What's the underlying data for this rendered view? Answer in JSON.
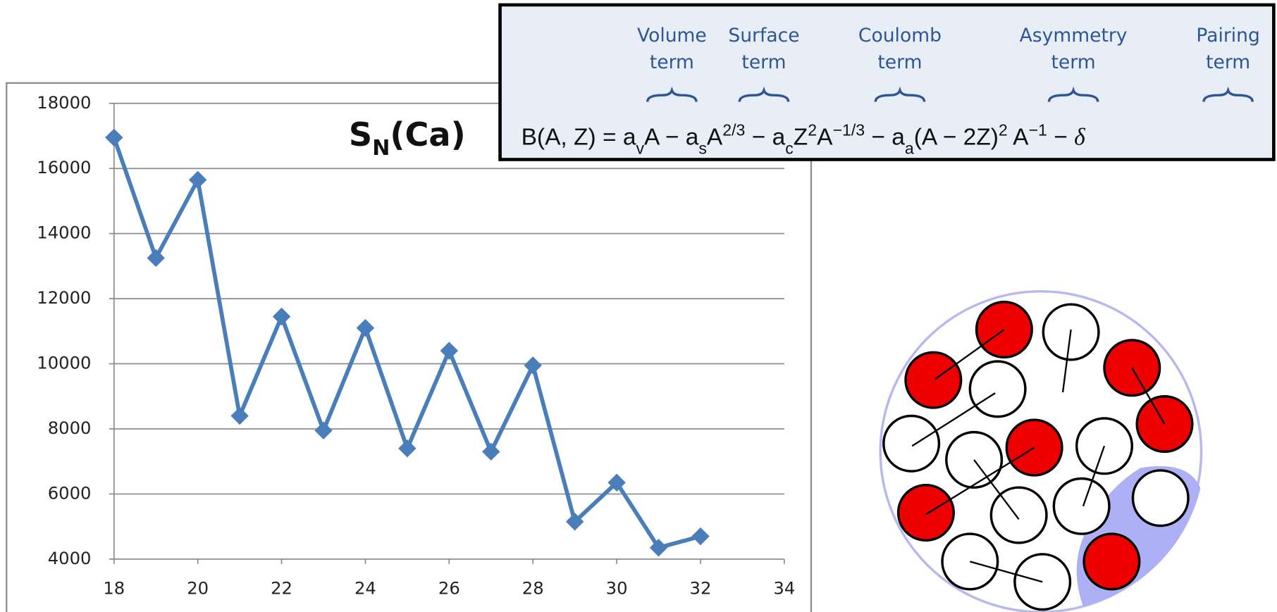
{
  "chart_data": {
    "type": "line",
    "title": [
      "S",
      "N",
      "(Ca)"
    ],
    "x": [
      18,
      19,
      20,
      21,
      22,
      23,
      24,
      25,
      26,
      27,
      28,
      29,
      30,
      31,
      32
    ],
    "series": [
      {
        "color": "#4a7ebb",
        "values": [
          16950,
          13250,
          15650,
          8400,
          11450,
          7950,
          11100,
          7400,
          10400,
          7300,
          9950,
          5150,
          6350,
          4350,
          4700
        ]
      }
    ],
    "xlim": [
      18,
      34
    ],
    "xticks": [
      18,
      20,
      22,
      24,
      26,
      28,
      30,
      32,
      34
    ],
    "ylim": [
      4000,
      18000
    ],
    "yticks": [
      4000,
      6000,
      8000,
      10000,
      12000,
      14000,
      16000,
      18000
    ],
    "grid": true,
    "marker": "diamond"
  },
  "formula": {
    "terms": [
      [
        "Volume",
        "term"
      ],
      [
        "Surface",
        "term"
      ],
      [
        "Coulomb",
        "term"
      ],
      [
        "Asymmetry",
        "term"
      ],
      [
        "Pairing",
        "term"
      ]
    ],
    "segments": [
      {
        "text": "B(A, Z) = a",
        "pos": "base"
      },
      {
        "text": "v",
        "pos": "sub"
      },
      {
        "text": "A − a",
        "pos": "base"
      },
      {
        "text": "s",
        "pos": "sub"
      },
      {
        "text": "A",
        "pos": "base"
      },
      {
        "text": "2/3",
        "pos": "sup"
      },
      {
        "text": " − a",
        "pos": "base"
      },
      {
        "text": "c",
        "pos": "sub"
      },
      {
        "text": "Z",
        "pos": "base"
      },
      {
        "text": "2",
        "pos": "sup"
      },
      {
        "text": "A",
        "pos": "base"
      },
      {
        "text": "−1/3",
        "pos": "sup"
      },
      {
        "text": " − a",
        "pos": "base"
      },
      {
        "text": "a",
        "pos": "sub"
      },
      {
        "text": "(A − 2Z)",
        "pos": "base"
      },
      {
        "text": "2",
        "pos": "sup"
      },
      {
        "text": " A",
        "pos": "base"
      },
      {
        "text": "−1",
        "pos": "sup"
      },
      {
        "text": " − ",
        "pos": "base"
      },
      {
        "text": "δ",
        "pos": "italic"
      }
    ]
  }
}
